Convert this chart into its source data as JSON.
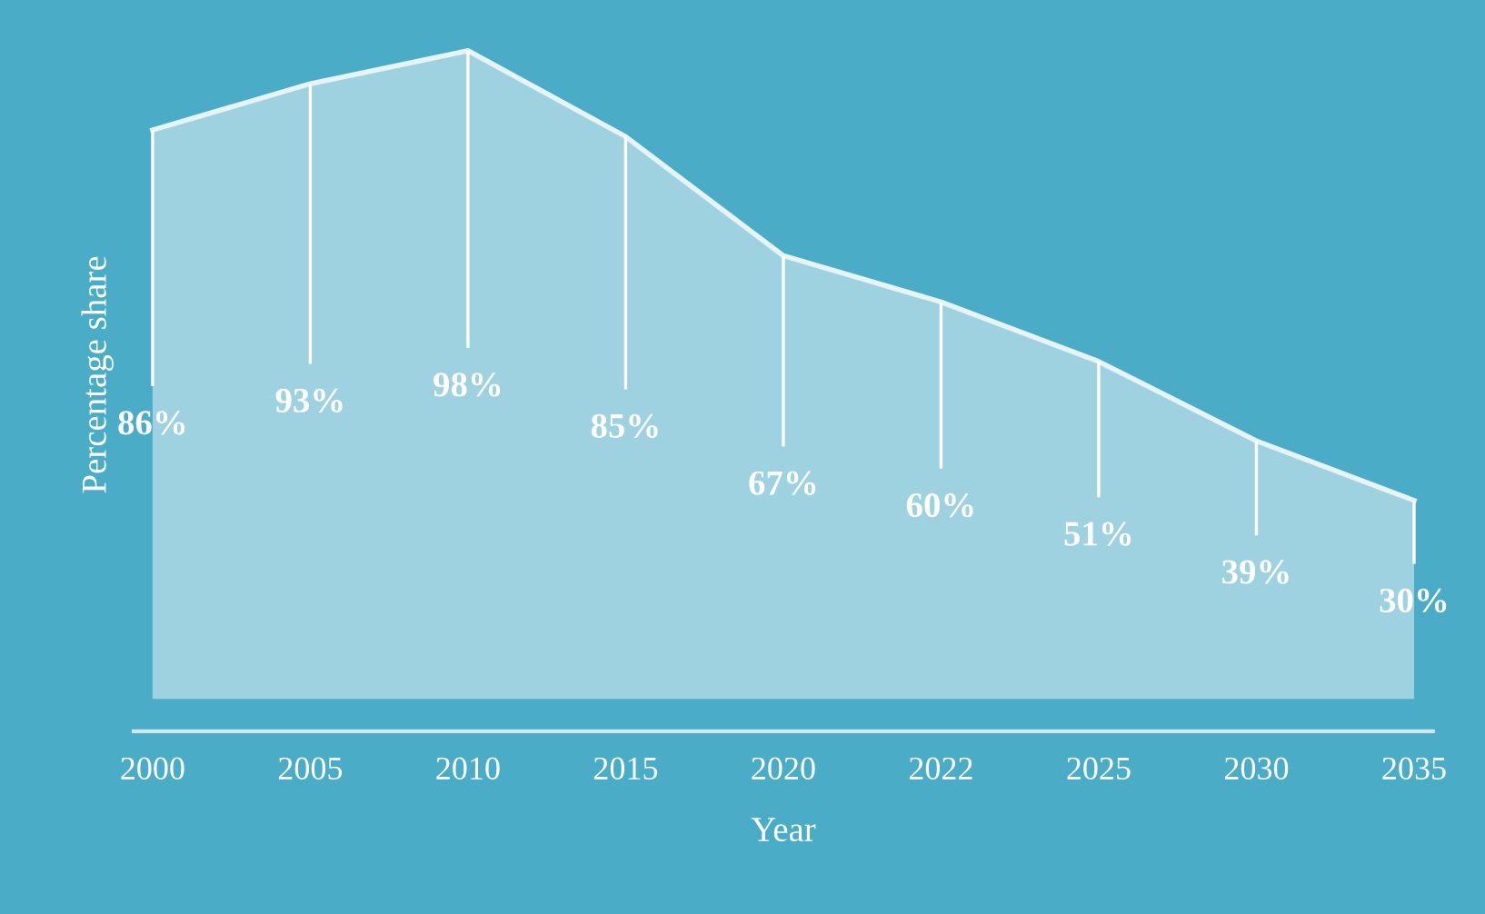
{
  "chart_data": {
    "type": "area",
    "xlabel": "Year",
    "ylabel": "Percentage share",
    "categories": [
      "2000",
      "2005",
      "2010",
      "2015",
      "2020",
      "2022",
      "2025",
      "2030",
      "2035"
    ],
    "series": [
      {
        "color": "#e6f3f7",
        "values": [
          86,
          93,
          98,
          85,
          67,
          60,
          51,
          39,
          30
        ],
        "value_labels": [
          "86%",
          "93%",
          "98%",
          "85%",
          "67%",
          "60%",
          "51%",
          "39%",
          "30%"
        ]
      }
    ],
    "grid": false,
    "legend": false
  }
}
